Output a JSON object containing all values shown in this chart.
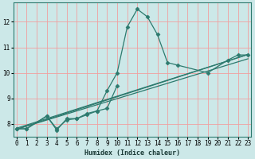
{
  "xlabel": "Humidex (Indice chaleur)",
  "bg_color": "#cce8e8",
  "grid_color_major": "#f0a0a0",
  "grid_color_minor": "#e8d0d0",
  "line_color": "#2d7a6e",
  "series": {
    "zigzag": {
      "x": [
        0,
        1,
        3,
        4,
        5,
        6,
        7,
        8,
        9,
        10,
        11,
        12,
        13,
        14,
        15,
        16,
        19,
        21,
        22,
        23
      ],
      "y": [
        7.8,
        7.8,
        8.3,
        7.8,
        8.15,
        8.2,
        8.35,
        8.5,
        9.3,
        10.0,
        11.8,
        12.5,
        12.2,
        11.5,
        10.4,
        10.3,
        10.0,
        10.5,
        10.7,
        10.7
      ]
    },
    "trend1": {
      "x": [
        0,
        23
      ],
      "y": [
        7.78,
        10.72
      ]
    },
    "trend2": {
      "x": [
        0,
        23
      ],
      "y": [
        7.78,
        10.55
      ]
    },
    "trend3": {
      "x": [
        0,
        23
      ],
      "y": [
        7.82,
        10.72
      ]
    },
    "short1": {
      "x": [
        0,
        1,
        3,
        4,
        5,
        6,
        7,
        8,
        9,
        10
      ],
      "y": [
        7.8,
        7.8,
        8.3,
        7.75,
        8.2,
        8.2,
        8.4,
        8.5,
        8.6,
        9.5
      ]
    }
  },
  "xlim": [
    -0.3,
    23.3
  ],
  "ylim": [
    7.5,
    12.75
  ],
  "yticks": [
    8,
    9,
    10,
    11,
    12
  ],
  "xticks": [
    0,
    1,
    2,
    3,
    4,
    5,
    6,
    7,
    8,
    9,
    10,
    11,
    12,
    13,
    14,
    15,
    16,
    17,
    18,
    19,
    20,
    21,
    22,
    23
  ],
  "marker": "D",
  "markersize": 2.5,
  "linewidth": 0.9
}
